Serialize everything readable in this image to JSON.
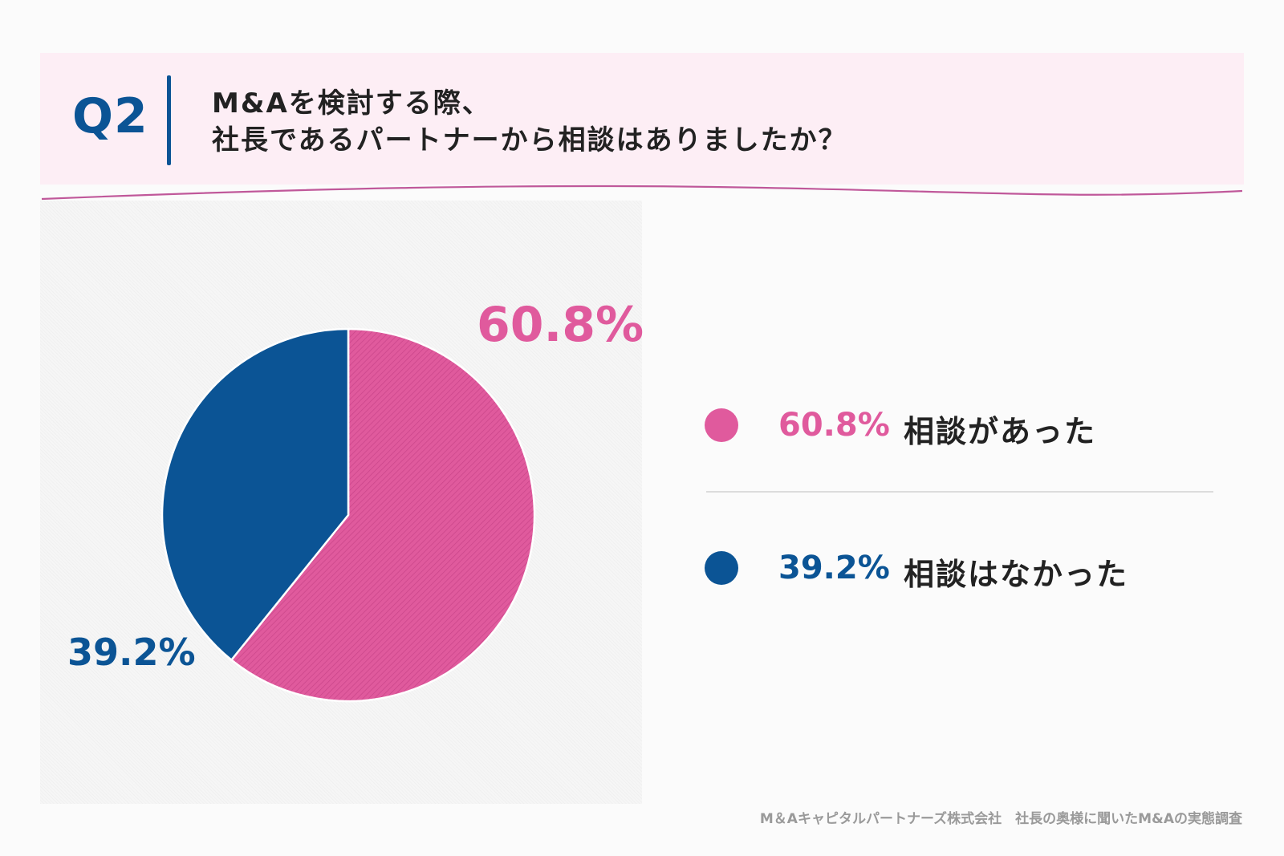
{
  "header": {
    "q_label": "Q2",
    "question_line1": "M&Aを検討する際、",
    "question_line2": "社長であるパートナーから相談はありましたか？"
  },
  "colors": {
    "pink": "#e05a9d",
    "blue": "#0b5495",
    "header_bg": "#fdeef5",
    "wave": "#c0589a"
  },
  "chart_data": {
    "type": "pie",
    "title": "M&Aを検討する際、社長であるパートナーから相談はありましたか？",
    "slices": [
      {
        "label": "相談があった",
        "value": 60.8,
        "display": "60.8%",
        "color": "#e05a9d"
      },
      {
        "label": "相談はなかった",
        "value": 39.2,
        "display": "39.2%",
        "color": "#0b5495"
      }
    ]
  },
  "legend": [
    {
      "pct": "60.8%",
      "text": "相談があった"
    },
    {
      "pct": "39.2%",
      "text": "相談はなかった"
    }
  ],
  "source": "M＆Aキャピタルパートナーズ株式会社　社長の奥様に聞いたM&Aの実態調査"
}
